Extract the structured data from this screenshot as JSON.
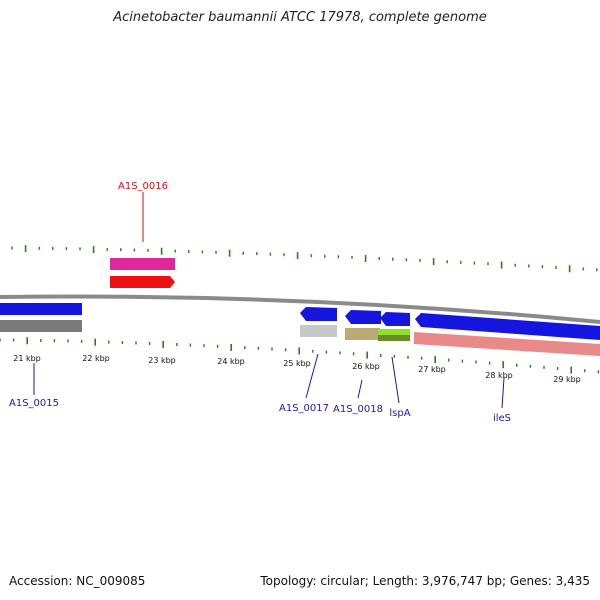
{
  "title": "Acinetobacter baumannii ATCC 17978, complete genome",
  "footer": {
    "accession": "Accession: NC_009085",
    "summary": "Topology: circular; Length: 3,976,747 bp; Genes: 3,435"
  },
  "colors": {
    "backbone": "#8a8a8a",
    "ticks": "#2e7d1e",
    "gene_blue": "#1515e0",
    "label_blue": "#1a1aa8",
    "label_red": "#cc1111",
    "magenta": "#e0289a",
    "red": "#ee1111",
    "grey": "#7a7a7a",
    "light_grey": "#c8c8c8",
    "khaki": "#b8ab74",
    "lime": "#8ee02a",
    "olive": "#6b8a2a",
    "salmon": "#e88a8a"
  },
  "ruler": {
    "labels": [
      "21 kbp",
      "22 kbp",
      "23 kbp",
      "24 kbp",
      "25 kbp",
      "26 kbp",
      "27 kbp",
      "28 kbp",
      "29 kbp"
    ]
  },
  "genes": [
    {
      "name": "A1S_0015",
      "label": "A1S_0015",
      "color": "label_blue"
    },
    {
      "name": "A1S_0016",
      "label": "A1S_0016",
      "color": "label_red"
    },
    {
      "name": "A1S_0017",
      "label": "A1S_0017",
      "color": "label_blue"
    },
    {
      "name": "A1S_0018",
      "label": "A1S_0018",
      "color": "label_blue"
    },
    {
      "name": "lspA",
      "label": "lspA",
      "color": "label_blue"
    },
    {
      "name": "ileS",
      "label": "ileS",
      "color": "label_blue"
    }
  ]
}
